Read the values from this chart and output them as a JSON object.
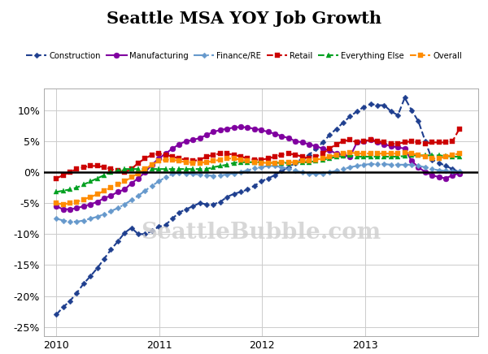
{
  "title": "Seattle MSA YOY Job Growth",
  "background_color": "#ffffff",
  "watermark": "SeattleBubble.com",
  "ylim": [
    -0.265,
    0.135
  ],
  "yticks": [
    -0.25,
    -0.2,
    -0.15,
    -0.1,
    -0.05,
    0.0,
    0.05,
    0.1
  ],
  "series": {
    "Construction": {
      "color": "#1f3f8f",
      "marker": "D",
      "markersize": 3.5,
      "linestyle": "--",
      "linewidth": 1.5,
      "data": [
        -0.23,
        -0.218,
        -0.208,
        -0.195,
        -0.18,
        -0.168,
        -0.155,
        -0.14,
        -0.125,
        -0.112,
        -0.098,
        -0.09,
        -0.1,
        -0.1,
        -0.095,
        -0.088,
        -0.085,
        -0.075,
        -0.065,
        -0.06,
        -0.055,
        -0.05,
        -0.052,
        -0.052,
        -0.048,
        -0.04,
        -0.035,
        -0.032,
        -0.028,
        -0.022,
        -0.015,
        -0.01,
        -0.005,
        0.002,
        0.008,
        0.015,
        0.022,
        0.028,
        0.038,
        0.048,
        0.06,
        0.07,
        0.08,
        0.09,
        0.098,
        0.105,
        0.11,
        0.108,
        0.108,
        0.098,
        0.092,
        0.12,
        0.1,
        0.082,
        0.05,
        0.02,
        0.015,
        0.01,
        0.005,
        0.0
      ]
    },
    "Manufacturing": {
      "color": "#8000a0",
      "marker": "o",
      "markersize": 5,
      "linestyle": "-",
      "linewidth": 1.5,
      "data": [
        -0.055,
        -0.06,
        -0.06,
        -0.058,
        -0.055,
        -0.052,
        -0.048,
        -0.042,
        -0.038,
        -0.032,
        -0.028,
        -0.018,
        -0.01,
        0.0,
        0.012,
        0.022,
        0.03,
        0.038,
        0.045,
        0.05,
        0.052,
        0.055,
        0.06,
        0.065,
        0.068,
        0.07,
        0.072,
        0.073,
        0.072,
        0.07,
        0.068,
        0.065,
        0.062,
        0.058,
        0.055,
        0.05,
        0.048,
        0.045,
        0.042,
        0.038,
        0.035,
        0.03,
        0.028,
        0.025,
        0.048,
        0.05,
        0.052,
        0.048,
        0.045,
        0.042,
        0.04,
        0.038,
        0.018,
        0.008,
        0.0,
        -0.005,
        -0.008,
        -0.01,
        -0.005,
        -0.002
      ]
    },
    "Finance/RE": {
      "color": "#6699cc",
      "marker": "D",
      "markersize": 3.5,
      "linestyle": "-.",
      "linewidth": 1.5,
      "data": [
        -0.075,
        -0.078,
        -0.08,
        -0.08,
        -0.078,
        -0.075,
        -0.072,
        -0.068,
        -0.063,
        -0.058,
        -0.052,
        -0.045,
        -0.038,
        -0.03,
        -0.022,
        -0.015,
        -0.008,
        -0.003,
        -0.001,
        -0.002,
        -0.003,
        -0.004,
        -0.005,
        -0.006,
        -0.005,
        -0.004,
        -0.002,
        0.0,
        0.003,
        0.006,
        0.008,
        0.01,
        0.01,
        0.008,
        0.005,
        0.002,
        0.0,
        -0.002,
        -0.003,
        -0.002,
        0.0,
        0.002,
        0.005,
        0.008,
        0.01,
        0.012,
        0.013,
        0.013,
        0.013,
        0.012,
        0.012,
        0.012,
        0.012,
        0.01,
        0.008,
        0.005,
        0.003,
        0.002,
        0.001,
        0.001
      ]
    },
    "Retail": {
      "color": "#cc0000",
      "marker": "s",
      "markersize": 5,
      "linestyle": "--",
      "linewidth": 1.5,
      "data": [
        -0.01,
        -0.005,
        0.0,
        0.005,
        0.008,
        0.01,
        0.01,
        0.008,
        0.005,
        0.002,
        0.0,
        0.005,
        0.015,
        0.022,
        0.028,
        0.03,
        0.028,
        0.025,
        0.022,
        0.02,
        0.018,
        0.02,
        0.025,
        0.028,
        0.03,
        0.03,
        0.028,
        0.025,
        0.022,
        0.02,
        0.02,
        0.022,
        0.025,
        0.028,
        0.03,
        0.028,
        0.025,
        0.022,
        0.025,
        0.03,
        0.038,
        0.045,
        0.05,
        0.052,
        0.048,
        0.05,
        0.052,
        0.05,
        0.048,
        0.046,
        0.046,
        0.048,
        0.05,
        0.048,
        0.046,
        0.048,
        0.048,
        0.048,
        0.05,
        0.07
      ]
    },
    "Everything Else": {
      "color": "#00a020",
      "marker": "^",
      "markersize": 5,
      "linestyle": "--",
      "linewidth": 1.5,
      "data": [
        -0.032,
        -0.03,
        -0.028,
        -0.025,
        -0.02,
        -0.015,
        -0.01,
        -0.005,
        0.0,
        0.002,
        0.005,
        0.005,
        0.005,
        0.005,
        0.005,
        0.005,
        0.005,
        0.005,
        0.005,
        0.005,
        0.005,
        0.005,
        0.005,
        0.008,
        0.01,
        0.012,
        0.015,
        0.016,
        0.016,
        0.016,
        0.016,
        0.015,
        0.015,
        0.015,
        0.015,
        0.016,
        0.016,
        0.016,
        0.018,
        0.02,
        0.022,
        0.025,
        0.026,
        0.027,
        0.025,
        0.025,
        0.025,
        0.025,
        0.025,
        0.025,
        0.025,
        0.026,
        0.027,
        0.027,
        0.027,
        0.027,
        0.027,
        0.026,
        0.025,
        0.025
      ]
    },
    "Overall": {
      "color": "#ff8c00",
      "marker": "s",
      "markersize": 5,
      "linestyle": "--",
      "linewidth": 1.5,
      "data": [
        -0.05,
        -0.052,
        -0.05,
        -0.048,
        -0.044,
        -0.04,
        -0.036,
        -0.03,
        -0.025,
        -0.02,
        -0.015,
        -0.008,
        -0.002,
        0.005,
        0.012,
        0.018,
        0.02,
        0.02,
        0.018,
        0.016,
        0.015,
        0.015,
        0.016,
        0.018,
        0.02,
        0.022,
        0.022,
        0.02,
        0.018,
        0.016,
        0.015,
        0.015,
        0.015,
        0.016,
        0.016,
        0.016,
        0.018,
        0.018,
        0.02,
        0.022,
        0.025,
        0.028,
        0.03,
        0.032,
        0.03,
        0.03,
        0.03,
        0.03,
        0.03,
        0.03,
        0.03,
        0.032,
        0.03,
        0.028,
        0.025,
        0.022,
        0.022,
        0.025,
        0.028,
        0.03
      ]
    }
  },
  "legend_order": [
    "Construction",
    "Manufacturing",
    "Finance/RE",
    "Retail",
    "Everything Else",
    "Overall"
  ],
  "n_points": 60,
  "x_start_year": 2010,
  "x_end_year": 2013.917
}
